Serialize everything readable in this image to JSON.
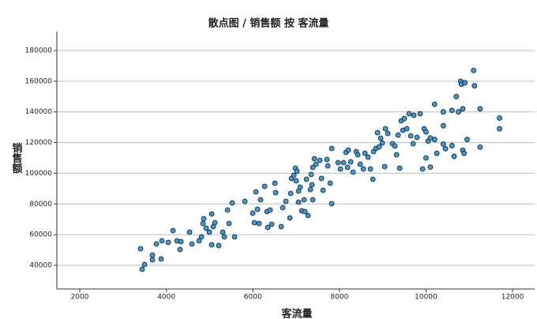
{
  "chart_data": {
    "type": "scatter",
    "title": "散点图 / 销售额 按 客流量",
    "x_label": "客流量",
    "y_label": "销售额",
    "x": [
      3405,
      3440,
      3497,
      3679,
      3679,
      3770,
      3880,
      3898,
      4044,
      4154,
      4245,
      4318,
      4336,
      4537,
      4592,
      4756,
      4811,
      4847,
      4865,
      4920,
      4993,
      5048,
      5048,
      5084,
      5121,
      5212,
      5303,
      5340,
      5413,
      5449,
      5522,
      5577,
      5814,
      5997,
      6033,
      6070,
      6106,
      6143,
      6179,
      6271,
      6325,
      6344,
      6398,
      6435,
      6508,
      6526,
      6654,
      6690,
      6763,
      6855,
      6873,
      6891,
      6946,
      6982,
      7000,
      7019,
      7055,
      7055,
      7092,
      7128,
      7183,
      7201,
      7238,
      7274,
      7329,
      7347,
      7365,
      7384,
      7384,
      7420,
      7457,
      7548,
      7584,
      7621,
      7712,
      7731,
      7785,
      7822,
      7822,
      7968,
      8023,
      8096,
      8150,
      8205,
      8187,
      8260,
      8315,
      8388,
      8424,
      8479,
      8552,
      8589,
      8661,
      8716,
      8771,
      8789,
      8844,
      8880,
      8917,
      8953,
      8990,
      9045,
      9063,
      9118,
      9227,
      9282,
      9319,
      9355,
      9392,
      9428,
      9465,
      9501,
      9556,
      9610,
      9647,
      9702,
      9720,
      9793,
      9866,
      9921,
      9957,
      10000,
      10050,
      10100,
      10000,
      10100,
      10200,
      10200,
      10250,
      10400,
      10400,
      10400,
      10450,
      10600,
      10600,
      10650,
      10700,
      10750,
      10800,
      10820,
      10850,
      10850,
      10880,
      10900,
      10950,
      11100,
      11120,
      11250,
      11250,
      11700,
      11700
    ],
    "values": [
      50810,
      37430,
      40520,
      46700,
      43600,
      53900,
      44120,
      55960,
      54930,
      62650,
      55960,
      50300,
      55440,
      61620,
      53900,
      55960,
      58530,
      67280,
      70370,
      64190,
      61620,
      53380,
      73460,
      65220,
      67800,
      52870,
      61620,
      58530,
      76030,
      67280,
      80660,
      58530,
      81690,
      73970,
      67800,
      87870,
      76550,
      67280,
      82720,
      91470,
      75000,
      64710,
      76030,
      66770,
      93530,
      87350,
      65220,
      77570,
      81690,
      70880,
      86840,
      96620,
      98680,
      103310,
      95070,
      101250,
      88380,
      81180,
      90960,
      75520,
      82720,
      75000,
      96100,
      72430,
      89410,
      99190,
      92500,
      103820,
      82720,
      109490,
      105880,
      108460,
      96620,
      88900,
      108970,
      104850,
      93530,
      80150,
      116180,
      106910,
      102790,
      106910,
      113600,
      115150,
      103820,
      107430,
      100740,
      114120,
      112060,
      105880,
      102790,
      113090,
      110520,
      102790,
      96100,
      114120,
      116180,
      126470,
      117210,
      122870,
      119780,
      104340,
      129040,
      125960,
      119270,
      117720,
      112060,
      124930,
      103310,
      134190,
      128020,
      135740,
      129040,
      138820,
      124410,
      119270,
      137790,
      123380,
      138820,
      102790,
      129040,
      127000,
      121000,
      123000,
      110000,
      104000,
      145000,
      122000,
      113000,
      140000,
      131000,
      119000,
      116000,
      141000,
      118000,
      111000,
      150000,
      140000,
      160000,
      158000,
      142000,
      115000,
      113000,
      159000,
      122000,
      167000,
      157000,
      142000,
      117000,
      136000,
      129000
    ],
    "color": "#3a9ad9",
    "xlim": [
      1470,
      12510
    ],
    "ylim": [
      24560,
      192350
    ],
    "xticks": [
      2000,
      4000,
      6000,
      8000,
      10000,
      12000
    ],
    "yticks": [
      40000,
      60000,
      80000,
      100000,
      120000,
      140000,
      160000,
      180000
    ],
    "grid": true
  }
}
